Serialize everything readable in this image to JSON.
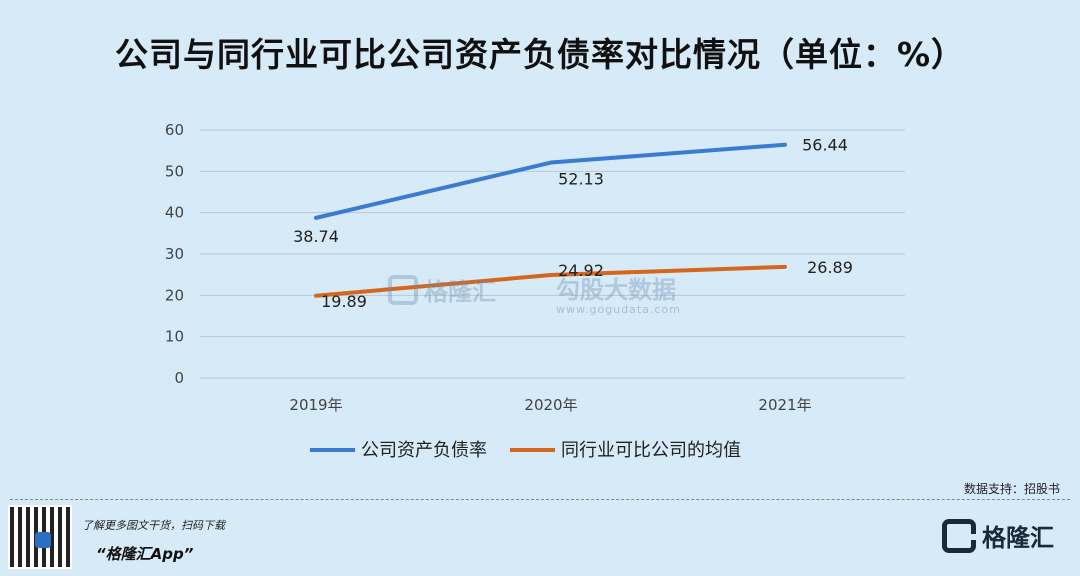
{
  "title": "公司与同行业可比公司资产负债率对比情况（单位：%）",
  "source": "数据支持：招股书",
  "watermark": {
    "left_name": "格隆汇",
    "right_name": "勾股大数据",
    "right_url": "www.gogudata.com"
  },
  "footer": {
    "promo_line": "了解更多图文干货，扫码下载",
    "app_name": "“格隆汇App”",
    "brand_name": "格隆汇"
  },
  "colors": {
    "company": "#3a7ccf",
    "peers": "#d4661e",
    "grid": "#b9c7d3",
    "background": "#d6eaf8"
  },
  "chart_data": {
    "type": "line",
    "categories": [
      "2019年",
      "2020年",
      "2021年"
    ],
    "series": [
      {
        "name": "公司资产负债率",
        "values": [
          38.74,
          52.13,
          56.44
        ],
        "labels": [
          "38.74",
          "52.13",
          "56.44"
        ]
      },
      {
        "name": "同行业可比公司的均值",
        "values": [
          19.89,
          24.92,
          26.89
        ],
        "labels": [
          "19.89",
          "24.92",
          "26.89"
        ]
      }
    ],
    "ylim": [
      0,
      60
    ],
    "yticks": [
      "0",
      "10",
      "20",
      "30",
      "40",
      "50",
      "60"
    ],
    "grid": true,
    "legend": "bottom"
  }
}
